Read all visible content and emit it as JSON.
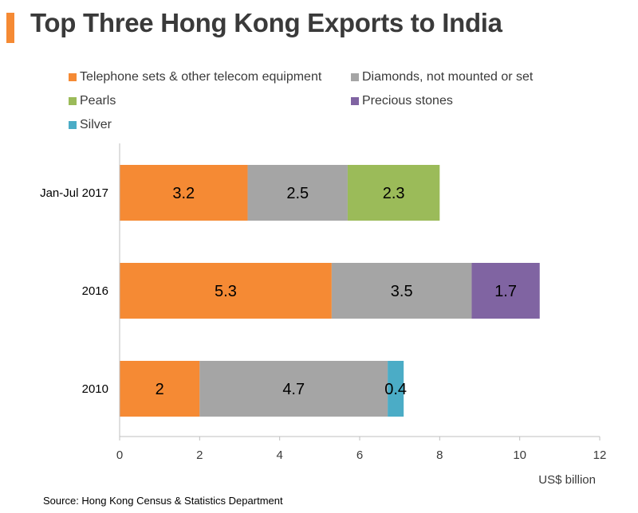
{
  "title": "Top Three Hong Kong Exports to India",
  "source": "Source: Hong Kong Census & Statistics Department",
  "colors": {
    "accent": "#f58a34",
    "axis": "#bfbfbf"
  },
  "chart_data": {
    "type": "bar",
    "orientation": "horizontal",
    "stacked": true,
    "title": "Top Three Hong Kong Exports to India",
    "xlabel": "US$ billion",
    "ylabel": "",
    "xlim": [
      0,
      12
    ],
    "x_ticks": [
      0,
      2,
      4,
      6,
      8,
      10,
      12
    ],
    "grid": false,
    "legend_position": "top",
    "categories": [
      "Jan-Jul 2017",
      "2016",
      "2010"
    ],
    "series": [
      {
        "name": "Telephone sets & other telecom equipment",
        "color": "#f58a34",
        "values": [
          3.2,
          5.3,
          2
        ]
      },
      {
        "name": "Diamonds, not mounted or set",
        "color": "#a5a5a5",
        "values": [
          2.5,
          3.5,
          4.7
        ]
      },
      {
        "name": "Pearls",
        "color": "#9bbb59",
        "values": [
          2.3,
          null,
          null
        ]
      },
      {
        "name": "Precious stones",
        "color": "#8064a2",
        "values": [
          null,
          1.7,
          null
        ]
      },
      {
        "name": "Silver",
        "color": "#4bacc6",
        "values": [
          null,
          null,
          0.4
        ]
      }
    ]
  }
}
